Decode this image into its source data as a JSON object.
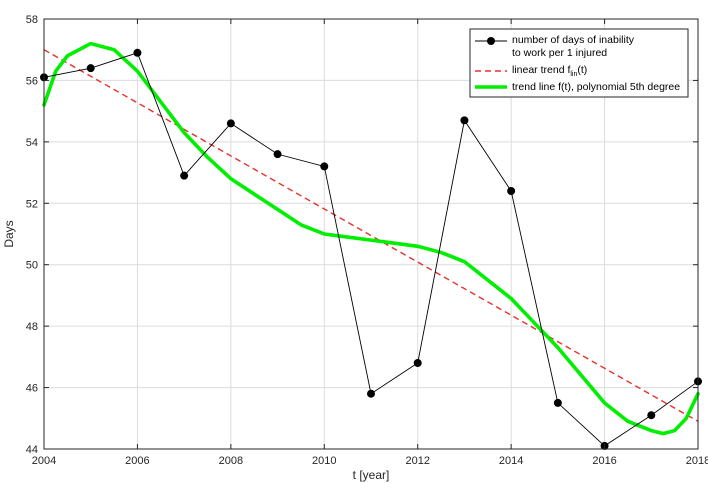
{
  "chart_data": {
    "type": "line",
    "xlabel": "t [year]",
    "ylabel": "Days",
    "xlim": [
      2004,
      2018
    ],
    "ylim": [
      44,
      58
    ],
    "x_ticks": [
      2004,
      2006,
      2008,
      2010,
      2012,
      2014,
      2016,
      2018
    ],
    "y_ticks": [
      44,
      46,
      48,
      50,
      52,
      54,
      56,
      58
    ],
    "grid": true,
    "legend_position": "top-right",
    "series": [
      {
        "legend_line1": "number of days of inability",
        "legend_line2": "to work per 1 injured",
        "style": "line-markers",
        "color": "#000000",
        "x": [
          2004,
          2005,
          2006,
          2007,
          2008,
          2009,
          2010,
          2011,
          2012,
          2013,
          2014,
          2015,
          2016,
          2017,
          2018
        ],
        "y": [
          56.1,
          56.4,
          56.9,
          52.9,
          54.6,
          53.6,
          53.2,
          45.8,
          46.8,
          54.7,
          52.4,
          45.5,
          44.1,
          45.1,
          46.2
        ]
      },
      {
        "legend_main": "linear trend f",
        "legend_sub": "lin",
        "legend_tail": "(t)",
        "style": "dashed",
        "color": "#e8302a",
        "x": [
          2004,
          2018
        ],
        "y": [
          57.0,
          44.9
        ]
      },
      {
        "legend_line1": "trend line f(t), polynomial 5th degree",
        "style": "thick",
        "color": "#00ee00",
        "x": [
          2004,
          2004.25,
          2004.5,
          2005,
          2005.5,
          2006,
          2006.5,
          2007,
          2007.5,
          2008,
          2008.5,
          2009,
          2009.5,
          2010,
          2010.5,
          2011,
          2011.5,
          2012,
          2012.5,
          2013,
          2013.5,
          2014,
          2014.5,
          2015,
          2015.5,
          2016,
          2016.5,
          2017,
          2017.25,
          2017.5,
          2017.75,
          2018
        ],
        "y": [
          55.2,
          56.3,
          56.8,
          57.2,
          57.0,
          56.3,
          55.3,
          54.3,
          53.5,
          52.8,
          52.3,
          51.8,
          51.3,
          51.0,
          50.9,
          50.8,
          50.7,
          50.6,
          50.4,
          50.1,
          49.5,
          48.9,
          48.1,
          47.3,
          46.4,
          45.5,
          44.9,
          44.6,
          44.5,
          44.6,
          45.0,
          45.8
        ]
      }
    ]
  }
}
